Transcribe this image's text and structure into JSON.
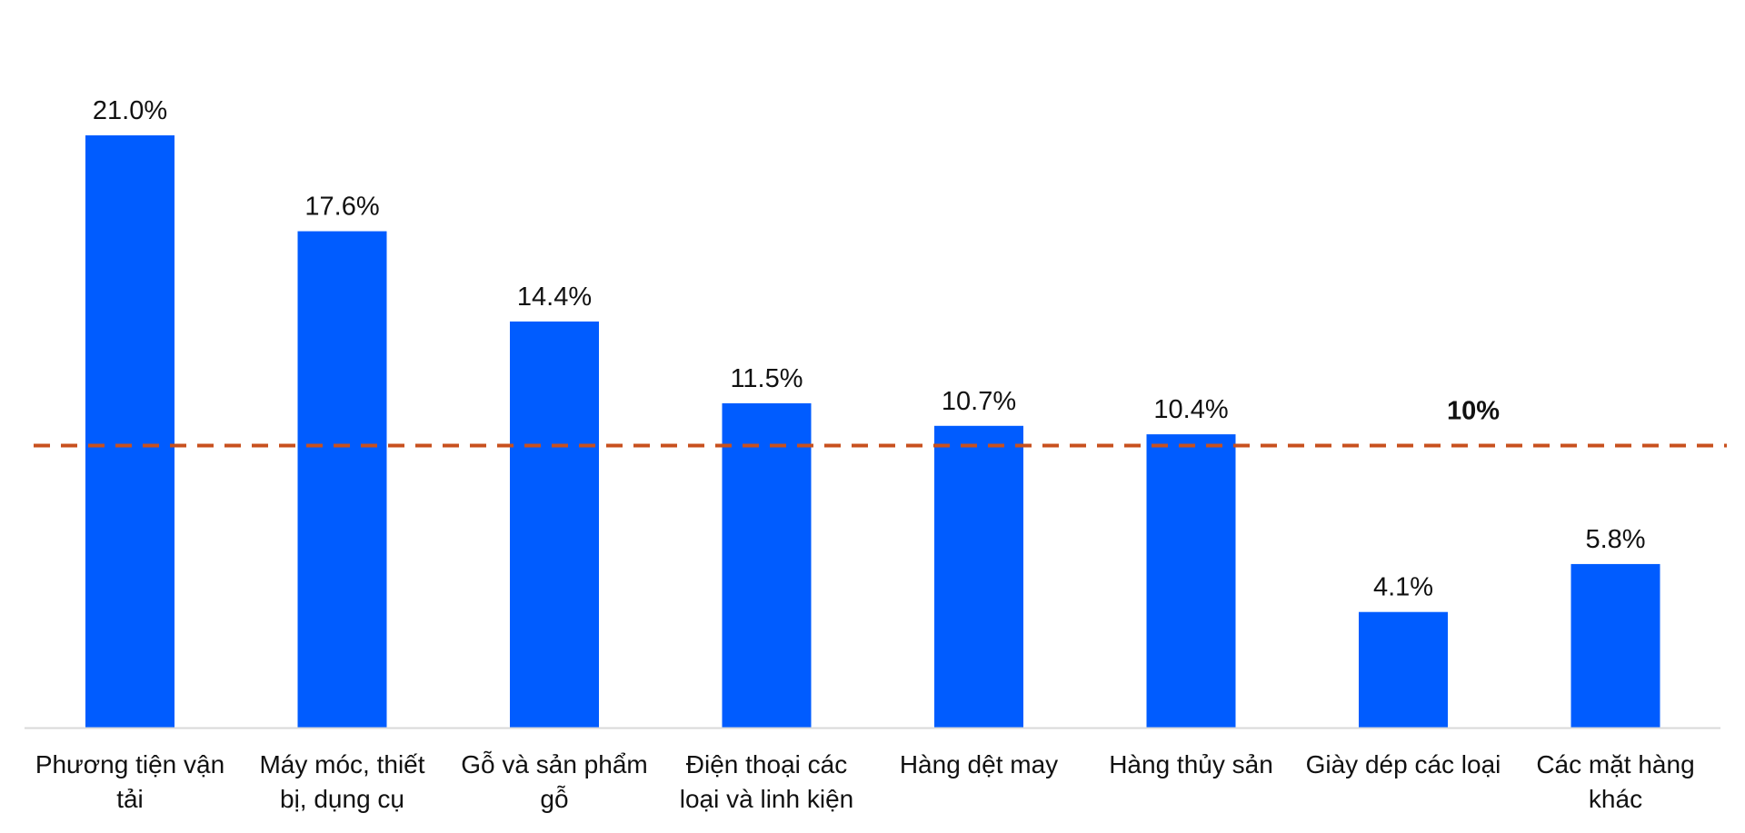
{
  "chart_data": {
    "type": "bar",
    "categories": [
      "Phương tiện vận tải",
      "Máy móc, thiết bị, dụng cụ",
      "Gỗ và sản phẩm gỗ",
      "Điện thoại các loại và linh kiện",
      "Hàng dệt may",
      "Hàng thủy sản",
      "Giày dép các loại",
      "Các mặt hàng khác"
    ],
    "values": [
      21.0,
      17.6,
      14.4,
      11.5,
      10.7,
      10.4,
      4.1,
      5.8
    ],
    "value_labels": [
      "21.0%",
      "17.6%",
      "14.4%",
      "11.5%",
      "10.7%",
      "10.4%",
      "4.1%",
      "5.8%"
    ],
    "color": "#005cff",
    "reference_line": {
      "value": 10,
      "label": "10%",
      "color": "#c8501e"
    }
  }
}
